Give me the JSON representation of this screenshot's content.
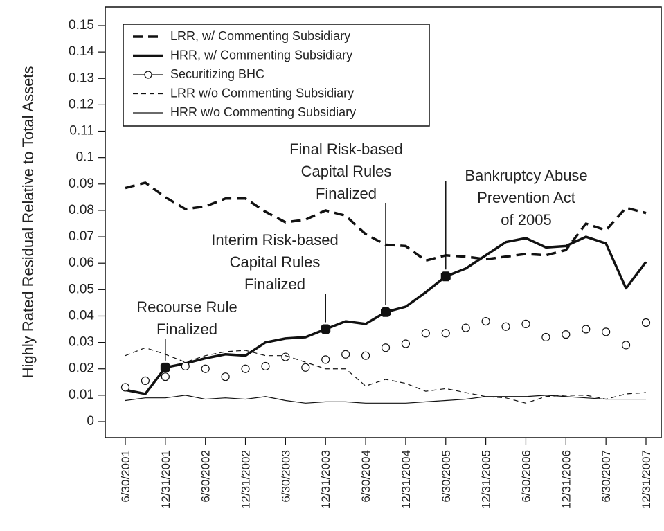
{
  "chart_data": {
    "type": "line",
    "y_label": "Highly Rated Residual Relative to Total Assets",
    "categories": [
      "6/30/2001",
      null,
      "12/31/2001",
      null,
      "6/30/2002",
      null,
      "12/31/2002",
      null,
      "6/30/2003",
      null,
      "12/31/2003",
      null,
      "6/30/2004",
      null,
      "12/31/2004",
      null,
      "6/30/2005",
      null,
      "12/31/2005",
      null,
      "6/30/2006",
      null,
      "12/31/2006",
      null,
      "6/30/2007",
      null,
      "12/31/2007"
    ],
    "ylim": [
      0,
      0.15
    ],
    "yticks": [
      0,
      0.01,
      0.02,
      0.03,
      0.04,
      0.05,
      0.06,
      0.07,
      0.08,
      0.09,
      0.1,
      0.11,
      0.12,
      0.13,
      0.14,
      0.15
    ],
    "legend": "top-left",
    "series": [
      {
        "name": "LRR, w/ Commenting Subsidiary",
        "color": "#111111",
        "style": "dashed",
        "width": 3.5,
        "values": [
          0.0885,
          0.0905,
          0.085,
          0.0805,
          0.0815,
          0.0845,
          0.0845,
          0.0795,
          0.0755,
          0.0765,
          0.08,
          0.078,
          0.071,
          0.067,
          0.0665,
          0.061,
          0.063,
          0.0625,
          0.0615,
          0.0625,
          0.0635,
          0.063,
          0.065,
          0.075,
          0.0725,
          0.081,
          0.079
        ]
      },
      {
        "name": "HRR, w/ Commenting Subsidiary",
        "color": "#111111",
        "style": "solid",
        "width": 3.5,
        "values": [
          0.012,
          0.0105,
          0.0205,
          0.022,
          0.024,
          0.0255,
          0.025,
          0.03,
          0.0315,
          0.032,
          0.035,
          0.038,
          0.037,
          0.0415,
          0.0435,
          0.049,
          0.055,
          0.058,
          0.063,
          0.068,
          0.0695,
          0.066,
          0.0665,
          0.07,
          0.0675,
          0.0505,
          0.0605
        ]
      },
      {
        "name": "Securitizing BHC",
        "color": "#111111",
        "style": "circles",
        "width": 1.2,
        "values": [
          0.013,
          0.0155,
          0.017,
          0.021,
          0.02,
          0.017,
          0.02,
          0.021,
          0.0245,
          0.0205,
          0.0235,
          0.0255,
          0.025,
          0.028,
          0.0295,
          0.0335,
          0.0335,
          0.0355,
          0.038,
          0.036,
          0.037,
          0.032,
          0.033,
          0.035,
          0.034,
          0.029,
          0.0375
        ]
      },
      {
        "name": "LRR w/o Commenting Subsidiary",
        "color": "#111111",
        "style": "dashed",
        "width": 1.2,
        "values": [
          0.025,
          0.028,
          0.0255,
          0.0225,
          0.025,
          0.0265,
          0.027,
          0.025,
          0.025,
          0.0225,
          0.02,
          0.02,
          0.0135,
          0.016,
          0.0145,
          0.0115,
          0.0125,
          0.011,
          0.0095,
          0.009,
          0.007,
          0.0095,
          0.01,
          0.01,
          0.0085,
          0.0105,
          0.011
        ]
      },
      {
        "name": "HRR w/o Commenting Subsidiary",
        "color": "#111111",
        "style": "solid",
        "width": 1.2,
        "values": [
          0.008,
          0.009,
          0.009,
          0.01,
          0.0085,
          0.009,
          0.0085,
          0.0095,
          0.008,
          0.007,
          0.0075,
          0.0075,
          0.007,
          0.007,
          0.007,
          0.0075,
          0.008,
          0.0085,
          0.0095,
          0.0095,
          0.0095,
          0.01,
          0.0095,
          0.009,
          0.0085,
          0.0085,
          0.0085
        ]
      }
    ],
    "annotations": [
      {
        "lines": [
          "Recourse Rule",
          "Finalized"
        ],
        "point": 2
      },
      {
        "lines": [
          "Interim Risk-based",
          "Capital Rules",
          "Finalized"
        ],
        "point": 10
      },
      {
        "lines": [
          "Final Risk-based",
          "Capital Rules",
          "Finalized"
        ],
        "point": 13
      },
      {
        "lines": [
          "Bankruptcy Abuse",
          "Prevention Act",
          "of 2005"
        ],
        "point": 16
      }
    ]
  }
}
